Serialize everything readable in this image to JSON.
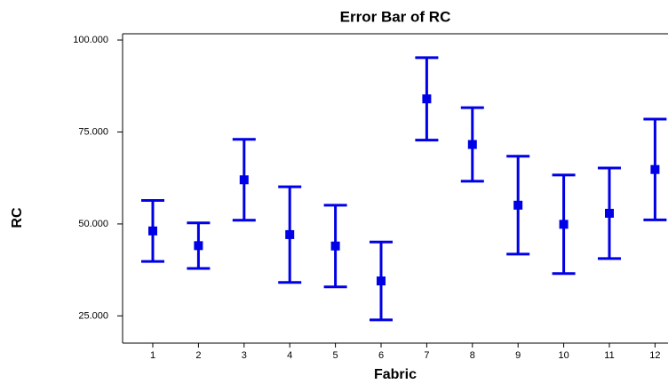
{
  "chart_data": {
    "type": "errorbar",
    "title": "Error Bar of RC",
    "x_label": "Fabric",
    "y_label": "RC",
    "categories": [
      "1",
      "2",
      "3",
      "4",
      "5",
      "6",
      "7",
      "8",
      "9",
      "10",
      "11",
      "12"
    ],
    "series": [
      {
        "name": "RC",
        "color": "#0000e6",
        "values": [
          48.1,
          44.1,
          62.0,
          47.1,
          44.0,
          34.5,
          84.0,
          71.6,
          55.1,
          49.9,
          52.9,
          64.8
        ],
        "errors": [
          8.3,
          6.2,
          11.0,
          13.0,
          11.1,
          10.6,
          11.2,
          10.0,
          13.3,
          13.4,
          12.3,
          13.7
        ]
      }
    ],
    "ylim": [
      17.6,
      101.7
    ],
    "yticks": [
      {
        "value": 25,
        "label": "25.000"
      },
      {
        "value": 50,
        "label": "50.000"
      },
      {
        "value": 75,
        "label": "75.000"
      },
      {
        "value": 100,
        "label": "100.000"
      }
    ],
    "grid": false
  }
}
